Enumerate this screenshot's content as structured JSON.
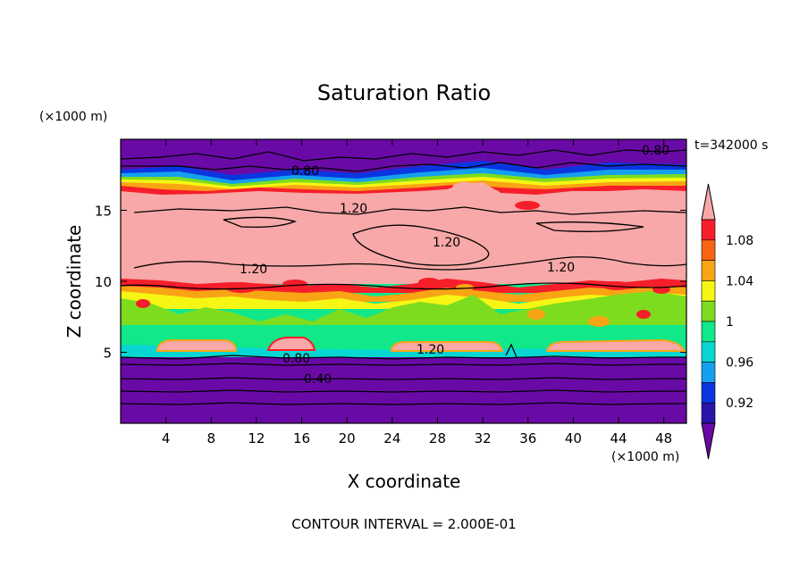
{
  "chart_data": {
    "type": "heatmap",
    "title": "Saturation Ratio",
    "xlabel": "X coordinate",
    "ylabel": "Z coordinate",
    "x_unit": "(×1000 m)",
    "y_unit": "(×1000 m)",
    "time_label": "t=342000 s",
    "footer": "CONTOUR INTERVAL = 2.000E-01",
    "xlim": [
      0,
      50
    ],
    "ylim": [
      0,
      20
    ],
    "x_ticks": [
      4,
      8,
      12,
      16,
      20,
      24,
      28,
      32,
      36,
      40,
      44,
      48
    ],
    "y_ticks": [
      5,
      10,
      15
    ],
    "colorbar": {
      "labels": [
        "1.08",
        "1.04",
        "1",
        "0.96",
        "0.92"
      ],
      "levels": [
        0.9,
        0.92,
        0.94,
        0.96,
        0.98,
        1.0,
        1.02,
        1.04,
        1.06,
        1.08,
        1.1
      ],
      "colors": [
        "#6a0aa6",
        "#2a16a8",
        "#0a36e0",
        "#14a0ee",
        "#08d6d2",
        "#10e88a",
        "#7edc1e",
        "#f6f614",
        "#f8a414",
        "#f86414",
        "#f61e2a",
        "#f8a8a8"
      ],
      "extend": "both"
    },
    "contour_labels": [
      "0.80",
      "0.80",
      "1.20",
      "1.20",
      "1.20",
      "1.20",
      "1.20",
      "0.80",
      "0.40"
    ],
    "layers": [
      {
        "z": [
          0,
          4.6
        ],
        "value": "< 0.90"
      },
      {
        "z": [
          4.6,
          10.0
        ],
        "value": "0.98 - 1.04"
      },
      {
        "z": [
          10.0,
          16.0
        ],
        "value": "> 1.10"
      },
      {
        "z": [
          16.0,
          18.4
        ],
        "value": "0.92 - 1.08"
      },
      {
        "z": [
          18.4,
          20.0
        ],
        "value": "< 0.90"
      }
    ]
  }
}
